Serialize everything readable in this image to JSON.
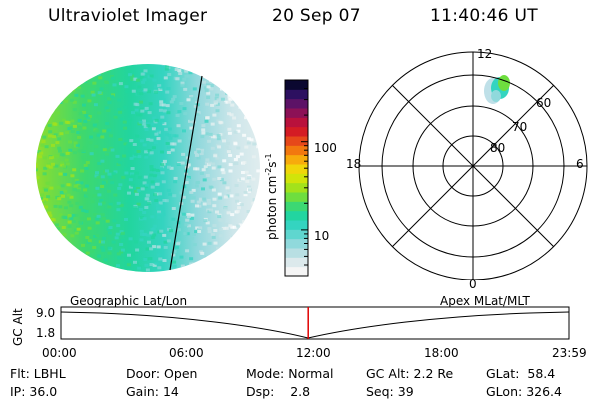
{
  "header": {
    "instrument": "Ultraviolet Imager",
    "date": "20 Sep 07",
    "time": "11:40:46 UT"
  },
  "colorbar": {
    "label": "photon cm",
    "label_sup1": "-2",
    "label_mid": "s",
    "label_sup2": "-1",
    "ticks": [
      {
        "label": "100",
        "value": 100
      },
      {
        "label": "10",
        "value": 10
      }
    ],
    "scale": "log",
    "range": [
      3,
      500
    ],
    "colors": [
      "#f5f5f5",
      "#dce9ec",
      "#b8dfe3",
      "#90d9dc",
      "#5fd6cf",
      "#34d4c0",
      "#22d5a0",
      "#3cd873",
      "#6ede3f",
      "#a3e21b",
      "#d1e40a",
      "#f0d60a",
      "#f7ab0c",
      "#f2780f",
      "#e6481a",
      "#d41c24",
      "#b9113c",
      "#8c1156",
      "#5c1266",
      "#2c1060",
      "#0b0830"
    ]
  },
  "polar_plot": {
    "mlt_labels": {
      "top": "12",
      "left": "18",
      "right": "6",
      "bottom": "0"
    },
    "lat_labels": [
      "60",
      "70",
      "80"
    ]
  },
  "timeline": {
    "title_left": "Geographic Lat/Lon",
    "title_right": "Apex  MLat/MLT",
    "ylabel": "GC Alt",
    "y_ticks": [
      "9.0",
      "1.8"
    ],
    "x_ticks": [
      "00:00",
      "06:00",
      "12:00",
      "18:00",
      "23:59"
    ],
    "current_time_fraction": 0.4866
  },
  "info": {
    "flt_label": "Flt:",
    "flt_value": "LBHL",
    "ip_label": "IP:",
    "ip_value": "36.0",
    "door_label": "Door:",
    "door_value": "Open",
    "gain_label": "Gain:",
    "gain_value": "14",
    "mode_label": "Mode:",
    "mode_value": "Normal",
    "dsp_label": "Dsp:",
    "dsp_value": "2.8",
    "gcalt_label": "GC Alt:",
    "gcalt_value": "2.2 Re",
    "seq_label": "Seq:",
    "seq_value": "39",
    "glat_label": "GLat:",
    "glat_value": "58.4",
    "glon_label": "GLon:",
    "glon_value": "326.4"
  }
}
